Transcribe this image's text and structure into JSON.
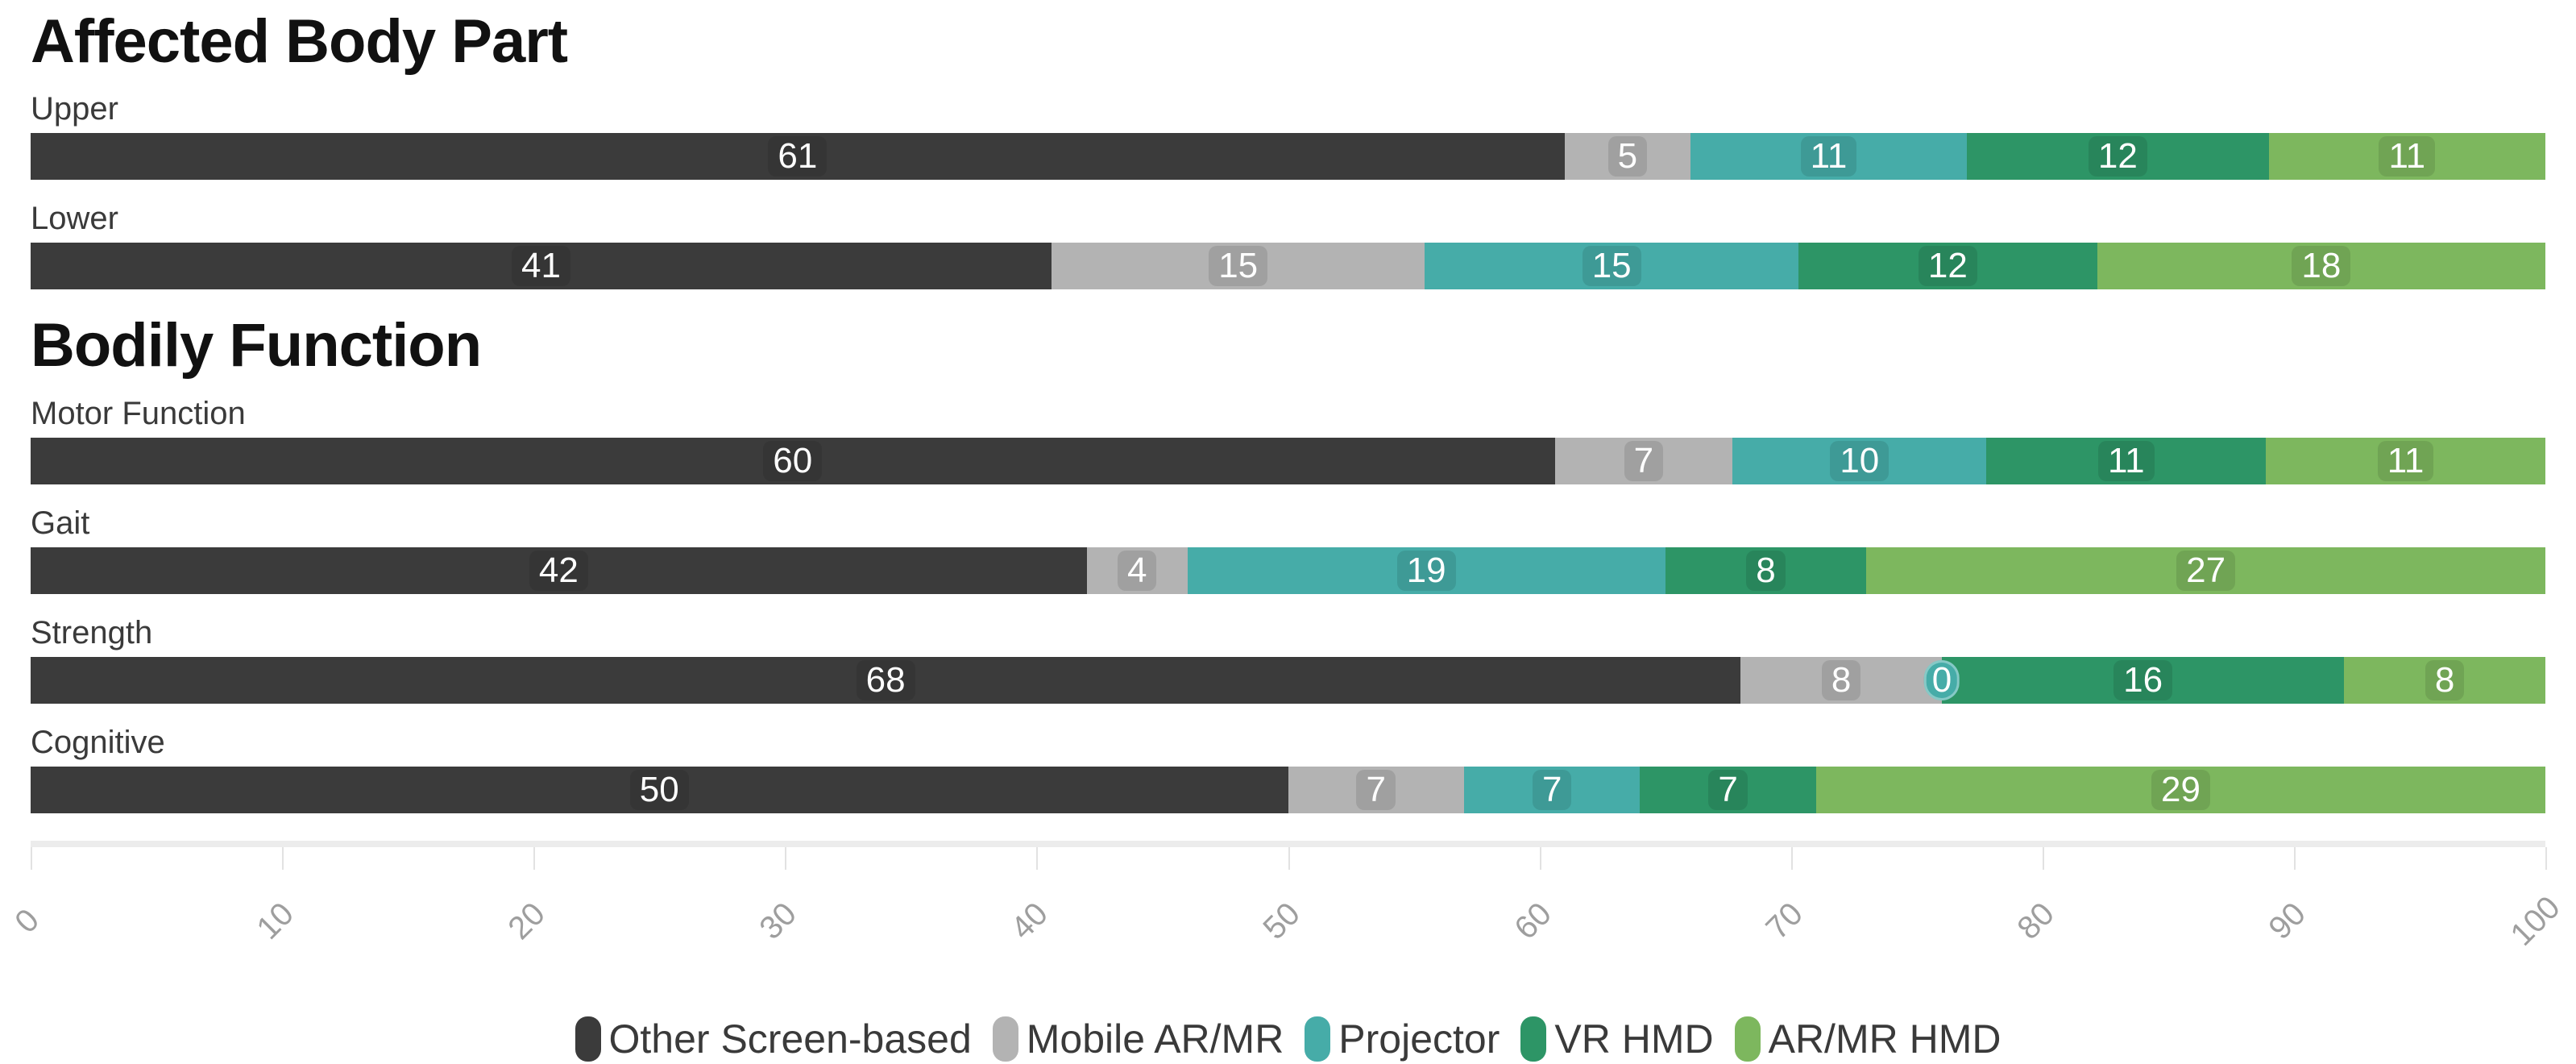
{
  "page": {
    "background": "#ffffff"
  },
  "legend": {
    "items": [
      {
        "label": "Other Screen-based",
        "color": "#3b3b3b"
      },
      {
        "label": "Mobile AR/MR",
        "color": "#b3b3b3"
      },
      {
        "label": "Projector",
        "color": "#46aca8"
      },
      {
        "label": "VR HMD",
        "color": "#2d9566"
      },
      {
        "label": "AR/MR HMD",
        "color": "#7db75e"
      }
    ]
  },
  "x_axis": {
    "min": 0,
    "max": 100,
    "ticks": [
      0,
      10,
      20,
      30,
      40,
      50,
      60,
      70,
      80,
      90,
      100
    ],
    "label_color": "#9e9e9e",
    "label_rotation_deg": -45
  },
  "chart_data": [
    {
      "type": "bar",
      "orientation": "horizontal-stacked",
      "title": "Affected Body Part",
      "categories": [
        "Upper",
        "Lower"
      ],
      "series": [
        {
          "name": "Other Screen-based",
          "color": "#3b3b3b",
          "values": [
            61,
            41
          ]
        },
        {
          "name": "Mobile AR/MR",
          "color": "#b3b3b3",
          "values": [
            5,
            15
          ]
        },
        {
          "name": "Projector",
          "color": "#46aca8",
          "values": [
            11,
            15
          ]
        },
        {
          "name": "VR HMD",
          "color": "#2d9566",
          "values": [
            12,
            12
          ]
        },
        {
          "name": "AR/MR HMD",
          "color": "#7db75e",
          "values": [
            11,
            18
          ]
        }
      ],
      "xlim": [
        0,
        100
      ],
      "legend_position": "bottom",
      "grid": false
    },
    {
      "type": "bar",
      "orientation": "horizontal-stacked",
      "title": "Bodily Function",
      "categories": [
        "Motor Function",
        "Gait",
        "Strength",
        "Cognitive"
      ],
      "series": [
        {
          "name": "Other Screen-based",
          "color": "#3b3b3b",
          "values": [
            60,
            42,
            68,
            50
          ]
        },
        {
          "name": "Mobile AR/MR",
          "color": "#b3b3b3",
          "values": [
            7,
            4,
            8,
            7
          ]
        },
        {
          "name": "Projector",
          "color": "#46aca8",
          "values": [
            10,
            19,
            0,
            7
          ]
        },
        {
          "name": "VR HMD",
          "color": "#2d9566",
          "values": [
            11,
            8,
            16,
            7
          ]
        },
        {
          "name": "AR/MR HMD",
          "color": "#7db75e",
          "values": [
            11,
            27,
            8,
            29
          ]
        }
      ],
      "xlim": [
        0,
        100
      ],
      "legend_position": "bottom",
      "grid": false
    }
  ]
}
